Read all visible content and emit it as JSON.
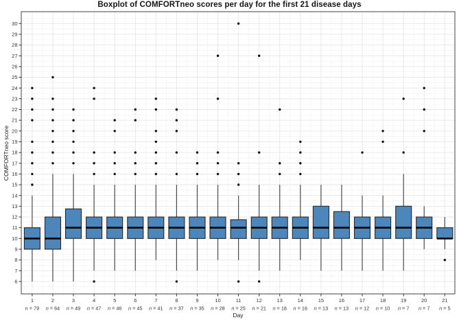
{
  "chart_data": {
    "type": "boxplot",
    "title": "Boxplot of COMFORTneo scores per day for the first 21 disease days",
    "xlabel": "Day",
    "ylabel": "COMFORTneo score",
    "ylim": [
      6,
      30
    ],
    "y_ticks": [
      6,
      7,
      8,
      9,
      10,
      11,
      12,
      13,
      14,
      15,
      16,
      17,
      18,
      19,
      20,
      21,
      22,
      23,
      24,
      25,
      26,
      27,
      28,
      29,
      30
    ],
    "legend": "none",
    "grid": {
      "horizontal_major_step": 1,
      "horizontal_minor_step": 0.5,
      "vertical": "one major line per day"
    },
    "colors": {
      "box_fill": "#4d86ba",
      "box_stroke": "#262626",
      "median": "#000000",
      "whisker": "#4a4a4a",
      "outlier": "#111111",
      "grid_major": "#e6e6e6",
      "grid_minor": "#f2f2f2",
      "panel_border": "#404040",
      "tick_label": "#333333"
    },
    "n_label_format": "n = {n}",
    "boxes": [
      {
        "day": 1,
        "n": 79,
        "whisker_low": 6,
        "q1": 9,
        "median": 10,
        "q3": 11,
        "whisker_high": 14,
        "outliers": [
          15,
          16,
          17,
          18,
          19,
          21,
          22,
          23,
          24
        ]
      },
      {
        "day": 2,
        "n": 64,
        "whisker_low": 6,
        "q1": 9,
        "median": 10,
        "q3": 12,
        "whisker_high": 16,
        "outliers": [
          17,
          18,
          19,
          20,
          21,
          22,
          23,
          25
        ]
      },
      {
        "day": 3,
        "n": 49,
        "whisker_low": 6,
        "q1": 10,
        "median": 11,
        "q3": 12.75,
        "whisker_high": 16,
        "outliers": [
          17,
          18,
          19,
          20,
          21,
          22
        ]
      },
      {
        "day": 4,
        "n": 47,
        "whisker_low": 7,
        "q1": 10,
        "median": 11,
        "q3": 12,
        "whisker_high": 15,
        "outliers": [
          6,
          16,
          17,
          18,
          23,
          24
        ]
      },
      {
        "day": 5,
        "n": 46,
        "whisker_low": 7,
        "q1": 10,
        "median": 11,
        "q3": 12,
        "whisker_high": 15,
        "outliers": [
          16,
          17,
          18,
          20,
          21
        ]
      },
      {
        "day": 6,
        "n": 45,
        "whisker_low": 7,
        "q1": 10,
        "median": 11,
        "q3": 12,
        "whisker_high": 15,
        "outliers": [
          16,
          17,
          18,
          21,
          22
        ]
      },
      {
        "day": 7,
        "n": 41,
        "whisker_low": 8,
        "q1": 10,
        "median": 11,
        "q3": 12,
        "whisker_high": 15,
        "outliers": [
          16,
          17,
          18,
          19,
          20,
          22,
          23
        ]
      },
      {
        "day": 8,
        "n": 37,
        "whisker_low": 7,
        "q1": 10,
        "median": 11,
        "q3": 12,
        "whisker_high": 15,
        "outliers": [
          6,
          16,
          18,
          20,
          21,
          22
        ]
      },
      {
        "day": 9,
        "n": 35,
        "whisker_low": 7,
        "q1": 10,
        "median": 11,
        "q3": 12,
        "whisker_high": 15,
        "outliers": [
          16,
          17,
          18
        ]
      },
      {
        "day": 10,
        "n": 28,
        "whisker_low": 8,
        "q1": 10,
        "median": 11,
        "q3": 12,
        "whisker_high": 15,
        "outliers": [
          16,
          17,
          18,
          23,
          27
        ]
      },
      {
        "day": 11,
        "n": 25,
        "whisker_low": 8,
        "q1": 10,
        "median": 11,
        "q3": 11.75,
        "whisker_high": 14,
        "outliers": [
          6,
          15,
          16,
          17,
          30
        ]
      },
      {
        "day": 12,
        "n": 21,
        "whisker_low": 7,
        "q1": 10,
        "median": 11,
        "q3": 12,
        "whisker_high": 15,
        "outliers": [
          6,
          18,
          27
        ]
      },
      {
        "day": 13,
        "n": 18,
        "whisker_low": 7,
        "q1": 10,
        "median": 11,
        "q3": 12,
        "whisker_high": 15,
        "outliers": [
          16,
          17,
          22
        ]
      },
      {
        "day": 14,
        "n": 16,
        "whisker_low": 8,
        "q1": 10,
        "median": 11,
        "q3": 12,
        "whisker_high": 15,
        "outliers": [
          16,
          17,
          18,
          19
        ]
      },
      {
        "day": 15,
        "n": 13,
        "whisker_low": 7,
        "q1": 10,
        "median": 11,
        "q3": 13,
        "whisker_high": 15,
        "outliers": []
      },
      {
        "day": 16,
        "n": 13,
        "whisker_low": 7,
        "q1": 10,
        "median": 11,
        "q3": 12.5,
        "whisker_high": 15,
        "outliers": []
      },
      {
        "day": 17,
        "n": 12,
        "whisker_low": 7,
        "q1": 10,
        "median": 11,
        "q3": 12,
        "whisker_high": 14,
        "outliers": [
          18
        ]
      },
      {
        "day": 18,
        "n": 10,
        "whisker_low": 7,
        "q1": 10,
        "median": 11,
        "q3": 12,
        "whisker_high": 14,
        "outliers": [
          19,
          20
        ]
      },
      {
        "day": 19,
        "n": 7,
        "whisker_low": 7,
        "q1": 10,
        "median": 11,
        "q3": 13,
        "whisker_high": 16,
        "outliers": [
          18,
          23
        ]
      },
      {
        "day": 20,
        "n": 7,
        "whisker_low": 9,
        "q1": 10,
        "median": 11,
        "q3": 12,
        "whisker_high": 13,
        "outliers": [
          20,
          22,
          24
        ]
      },
      {
        "day": 21,
        "n": 5,
        "whisker_low": 9,
        "q1": 10,
        "median": 10,
        "q3": 11,
        "whisker_high": 12,
        "outliers": [
          8
        ]
      }
    ]
  }
}
